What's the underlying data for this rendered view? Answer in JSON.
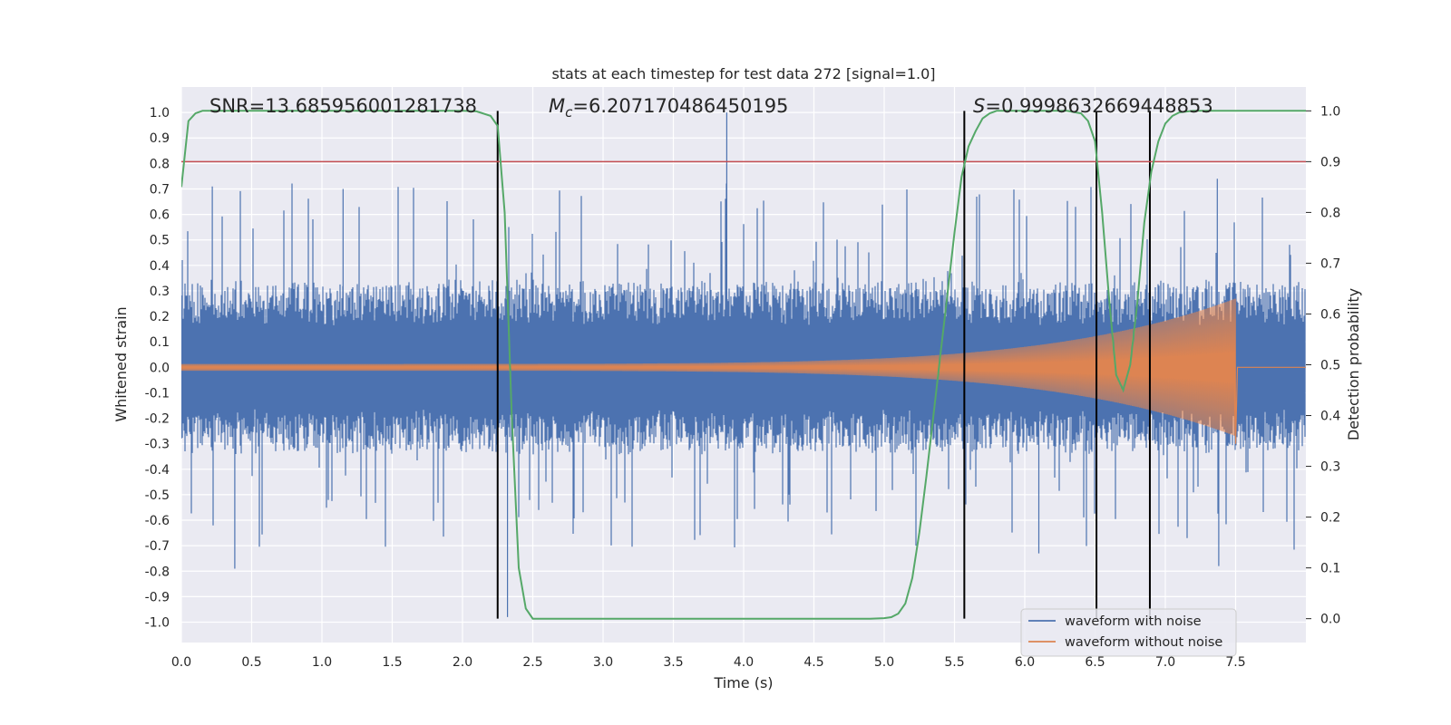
{
  "chart_data": {
    "type": "line",
    "title": "stats at each timestep for test data 272 [signal=1.0]",
    "xlabel": "Time (s)",
    "ylabel": "Whitened strain",
    "y2label": "Detection probability",
    "xlim": [
      0.0,
      8.0
    ],
    "ylim": [
      -1.08,
      1.1
    ],
    "y2lim": [
      -0.047,
      1.047
    ],
    "xticks": [
      "0.0",
      "0.5",
      "1.0",
      "1.5",
      "2.0",
      "2.5",
      "3.0",
      "3.5",
      "4.0",
      "4.5",
      "5.0",
      "5.5",
      "6.0",
      "6.5",
      "7.0",
      "7.5"
    ],
    "yticks": [
      "-1.0",
      "-0.9",
      "-0.8",
      "-0.7",
      "-0.6",
      "-0.5",
      "-0.4",
      "-0.3",
      "-0.2",
      "-0.1",
      "0.0",
      "0.1",
      "0.2",
      "0.3",
      "0.4",
      "0.5",
      "0.6",
      "0.7",
      "0.8",
      "0.9",
      "1.0"
    ],
    "y2ticks": [
      "0.0",
      "0.1",
      "0.2",
      "0.3",
      "0.4",
      "0.5",
      "0.6",
      "0.7",
      "0.8",
      "0.9",
      "1.0"
    ],
    "grid": true,
    "legend_position": "bottom-right",
    "annotations": {
      "snr": "SNR=13.685956001281738",
      "mc_symbol": "M",
      "mc_subscript": "c",
      "mc_value": "=6.207170486450195",
      "s_symbol": "S",
      "s_value": "=0.9998632669448853"
    },
    "threshold": {
      "value": 0.9,
      "axis": "y2",
      "color": "#c44e52"
    },
    "vlines": [
      2.25,
      5.57,
      6.51,
      6.89
    ],
    "colors": {
      "noisy": "#4c72b0",
      "clean": "#dd8452",
      "probability": "#55a868",
      "vline": "#000000",
      "background": "#eaeaf2"
    },
    "series": [
      {
        "name": "waveform with noise",
        "axis": "y",
        "color": "#4c72b0",
        "envelope": {
          "typical_amplitude": 0.33,
          "notable_spikes": [
            [
              0.22,
              0.71
            ],
            [
              0.38,
              -0.79
            ],
            [
              1.15,
              0.7
            ],
            [
              2.32,
              -0.98
            ],
            [
              3.88,
              1.0
            ],
            [
              6.1,
              -0.73
            ],
            [
              7.37,
              0.74
            ],
            [
              7.38,
              -0.78
            ]
          ]
        }
      },
      {
        "name": "waveform without noise",
        "axis": "y",
        "color": "#dd8452",
        "envelope": {
          "t_start": 0.0,
          "t_merger": 7.5,
          "amp_start": 0.013,
          "amp_peak": 0.27,
          "amp_min": -0.3
        }
      },
      {
        "name": "detection probability",
        "axis": "y2",
        "color": "#55a868",
        "x": [
          0.0,
          0.05,
          0.1,
          0.15,
          0.3,
          0.6,
          1.0,
          1.5,
          2.0,
          2.1,
          2.2,
          2.25,
          2.3,
          2.35,
          2.4,
          2.45,
          2.5,
          2.6,
          3.0,
          3.5,
          4.0,
          4.5,
          4.9,
          5.0,
          5.05,
          5.1,
          5.15,
          5.2,
          5.25,
          5.3,
          5.35,
          5.4,
          5.45,
          5.5,
          5.55,
          5.6,
          5.65,
          5.7,
          5.75,
          5.8,
          5.9,
          6.1,
          6.3,
          6.4,
          6.45,
          6.5,
          6.55,
          6.6,
          6.65,
          6.7,
          6.75,
          6.8,
          6.85,
          6.9,
          6.95,
          7.0,
          7.05,
          7.1,
          7.2,
          7.5,
          8.0
        ],
        "values": [
          0.85,
          0.98,
          0.995,
          1.0,
          1.0,
          1.0,
          1.0,
          1.0,
          1.0,
          0.999,
          0.99,
          0.97,
          0.8,
          0.4,
          0.1,
          0.02,
          0.0,
          0.0,
          0.0,
          0.0,
          0.0,
          0.0,
          0.0,
          0.001,
          0.003,
          0.01,
          0.03,
          0.08,
          0.17,
          0.28,
          0.4,
          0.52,
          0.64,
          0.76,
          0.87,
          0.93,
          0.96,
          0.985,
          0.995,
          1.0,
          1.0,
          1.0,
          1.0,
          0.995,
          0.98,
          0.94,
          0.8,
          0.63,
          0.48,
          0.45,
          0.5,
          0.62,
          0.78,
          0.88,
          0.94,
          0.975,
          0.99,
          0.997,
          1.0,
          1.0,
          1.0
        ]
      }
    ]
  }
}
